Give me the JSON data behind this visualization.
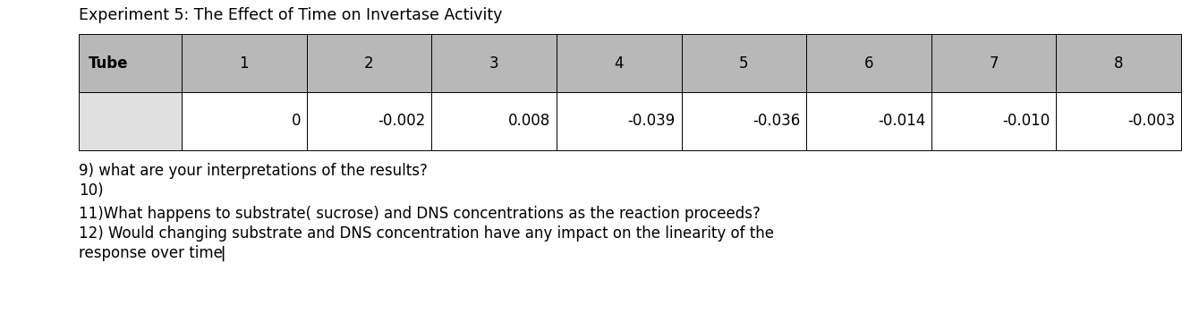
{
  "title": "Experiment 5: The Effect of Time on Invertase Activity",
  "header_row": [
    "Tube",
    "1",
    "2",
    "3",
    "4",
    "5",
    "6",
    "7",
    "8"
  ],
  "data_row_label": "",
  "data_values": [
    "0",
    "-0.002",
    "0.008",
    "-0.039",
    "-0.036",
    "-0.014",
    "-0.010",
    "-0.003"
  ],
  "header_bg": "#b8b8b8",
  "data_first_col_bg": "#e0e0e0",
  "data_cell_bg": "#ffffff",
  "title_fontsize": 12.5,
  "table_fontsize": 12,
  "body_fontsize": 12,
  "text_lines": [
    "9) what are your interpretations of the results?",
    "10)",
    "11)What happens to substrate( sucrose) and DNS concentrations as the reaction proceeds?",
    "12) Would changing substrate and DNS concentration have any impact on the linearity of the",
    "response over time▏"
  ]
}
